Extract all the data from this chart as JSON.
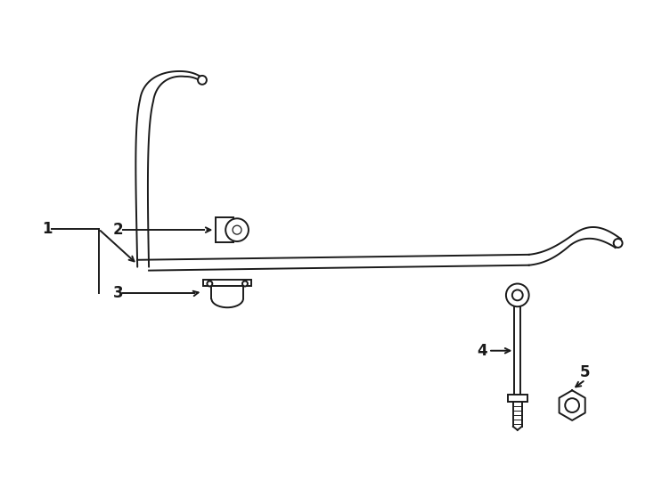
{
  "bg_color": "#ffffff",
  "line_color": "#1a1a1a",
  "lw": 1.4,
  "fig_width": 7.34,
  "fig_height": 5.4,
  "label_fontsize": 12
}
